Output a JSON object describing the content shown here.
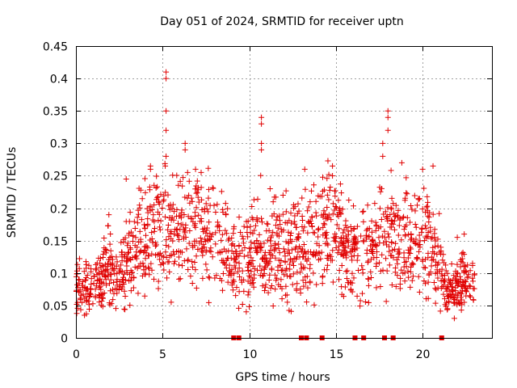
{
  "chart_data": {
    "type": "scatter",
    "title": "Day 051 of 2024, SRMTID for receiver uptn",
    "xlabel": "GPS time / hours",
    "ylabel": "SRMTID / TECUs",
    "xlim": [
      0,
      24
    ],
    "ylim": [
      0,
      0.45
    ],
    "xticks": [
      0,
      5,
      10,
      15,
      20
    ],
    "xtick_labels": [
      "0",
      "5",
      "10",
      "15",
      "20"
    ],
    "yticks": [
      0,
      0.05,
      0.1,
      0.15,
      0.2,
      0.25,
      0.3,
      0.35,
      0.4,
      0.45
    ],
    "ytick_labels": [
      "0",
      "0.05",
      "0.1",
      "0.15",
      "0.2",
      "0.25",
      "0.3",
      "0.35",
      "0.4",
      "0.45"
    ],
    "grid": true,
    "marker": "plus",
    "color": "#e00000",
    "series": [
      {
        "name": "SRMTID",
        "profile": [
          [
            0.0,
            0.07
          ],
          [
            0.5,
            0.08
          ],
          [
            1.0,
            0.075
          ],
          [
            1.5,
            0.1
          ],
          [
            2.0,
            0.11
          ],
          [
            2.5,
            0.09
          ],
          [
            3.0,
            0.12
          ],
          [
            3.5,
            0.14
          ],
          [
            4.0,
            0.16
          ],
          [
            4.5,
            0.17
          ],
          [
            5.0,
            0.17
          ],
          [
            5.5,
            0.16
          ],
          [
            6.0,
            0.15
          ],
          [
            6.5,
            0.16
          ],
          [
            7.0,
            0.17
          ],
          [
            7.5,
            0.16
          ],
          [
            8.0,
            0.15
          ],
          [
            8.5,
            0.14
          ],
          [
            9.0,
            0.12
          ],
          [
            9.5,
            0.11
          ],
          [
            10.0,
            0.12
          ],
          [
            10.5,
            0.15
          ],
          [
            11.0,
            0.14
          ],
          [
            11.5,
            0.13
          ],
          [
            12.0,
            0.13
          ],
          [
            12.5,
            0.14
          ],
          [
            13.0,
            0.13
          ],
          [
            13.5,
            0.15
          ],
          [
            14.0,
            0.14
          ],
          [
            14.5,
            0.17
          ],
          [
            15.0,
            0.17
          ],
          [
            15.5,
            0.14
          ],
          [
            16.0,
            0.13
          ],
          [
            16.5,
            0.13
          ],
          [
            17.0,
            0.13
          ],
          [
            17.5,
            0.15
          ],
          [
            18.0,
            0.17
          ],
          [
            18.5,
            0.14
          ],
          [
            19.0,
            0.15
          ],
          [
            19.5,
            0.16
          ],
          [
            20.0,
            0.14
          ],
          [
            20.5,
            0.15
          ],
          [
            21.0,
            0.11
          ],
          [
            21.5,
            0.07
          ],
          [
            22.0,
            0.08
          ],
          [
            22.5,
            0.09
          ],
          [
            23.0,
            0.08
          ]
        ],
        "peaks": [
          [
            5.2,
            0.41
          ],
          [
            5.2,
            0.4
          ],
          [
            5.2,
            0.35
          ],
          [
            5.2,
            0.32
          ],
          [
            5.2,
            0.28
          ],
          [
            6.3,
            0.3
          ],
          [
            6.3,
            0.29
          ],
          [
            10.7,
            0.34
          ],
          [
            10.7,
            0.33
          ],
          [
            10.7,
            0.3
          ],
          [
            10.7,
            0.29
          ],
          [
            17.7,
            0.3
          ],
          [
            17.7,
            0.28
          ],
          [
            18.0,
            0.35
          ],
          [
            18.0,
            0.34
          ],
          [
            18.0,
            0.32
          ],
          [
            4.3,
            0.265
          ],
          [
            4.3,
            0.26
          ],
          [
            6.9,
            0.26
          ],
          [
            13.2,
            0.26
          ],
          [
            14.8,
            0.265
          ],
          [
            14.8,
            0.25
          ],
          [
            18.8,
            0.27
          ],
          [
            20.0,
            0.26
          ],
          [
            20.6,
            0.265
          ],
          [
            2.9,
            0.245
          ],
          [
            11.2,
            0.23
          ],
          [
            1.9,
            0.19
          ],
          [
            22.4,
            0.16
          ],
          [
            22.0,
            0.155
          ]
        ]
      }
    ],
    "gap_markers_x": [
      9.1,
      9.4,
      13.0,
      13.3,
      14.2,
      16.1,
      16.6,
      17.8,
      18.3,
      21.1
    ]
  }
}
